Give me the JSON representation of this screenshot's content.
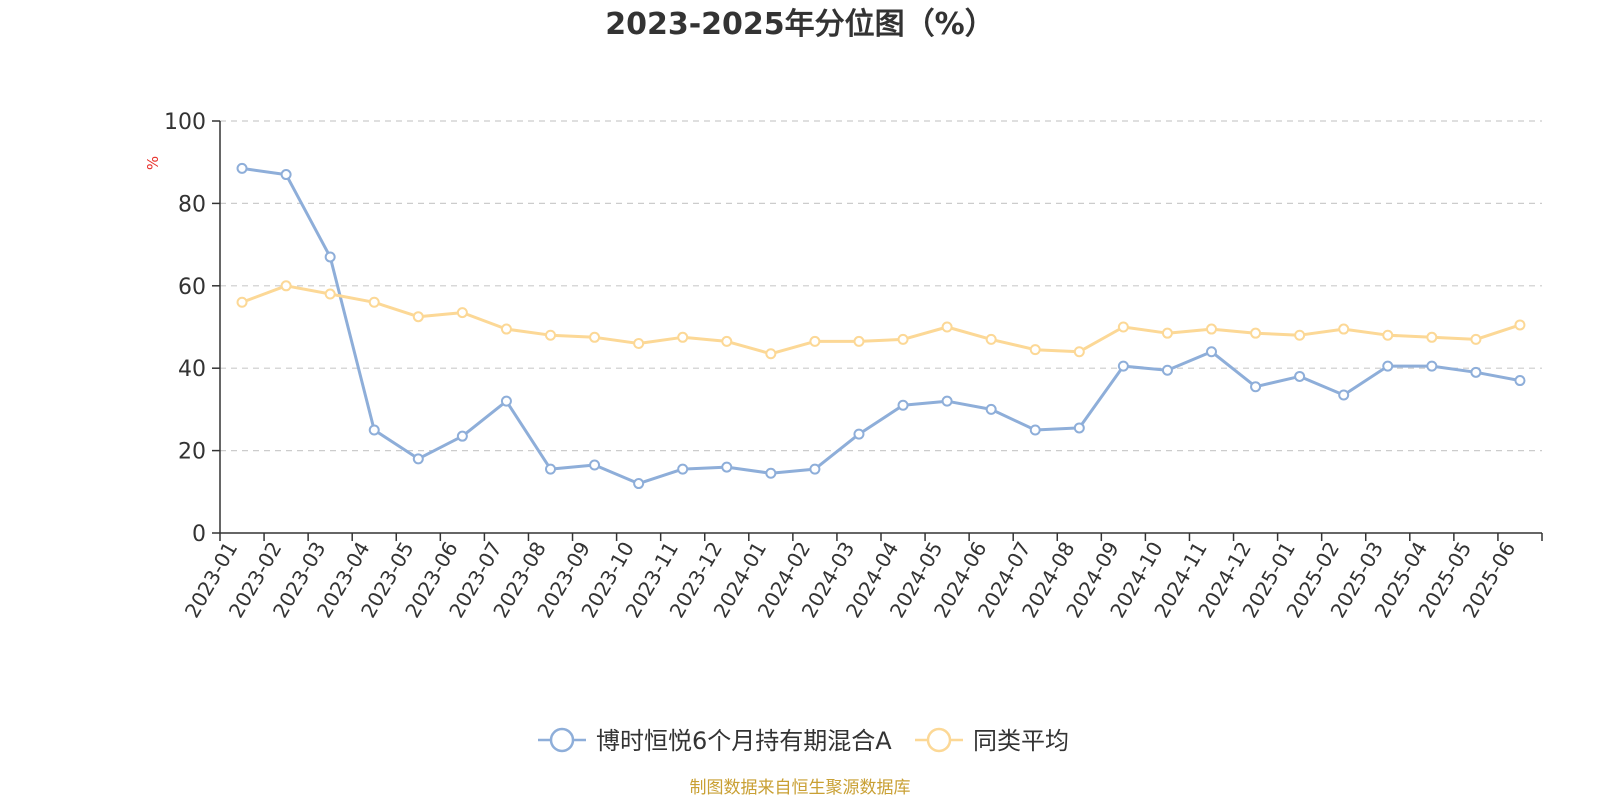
{
  "colors": {
    "series_a": "#8eaed9",
    "series_b": "#fcd896",
    "grid": "#cccccc",
    "axis": "#333333",
    "unit": "#e8312c",
    "source": "#c9a034"
  },
  "chart_data": {
    "type": "line",
    "title": "2023-2025年分位图（%）",
    "ylabel": "%",
    "ylim": [
      0,
      100
    ],
    "yticks": [
      0,
      20,
      40,
      60,
      80,
      100
    ],
    "grid": true,
    "legend_position": "bottom-center",
    "x": [
      "2023-01",
      "2023-02",
      "2023-03",
      "2023-04",
      "2023-05",
      "2023-06",
      "2023-07",
      "2023-08",
      "2023-09",
      "2023-10",
      "2023-11",
      "2023-12",
      "2024-01",
      "2024-02",
      "2024-03",
      "2024-04",
      "2024-05",
      "2024-06",
      "2024-07",
      "2024-08",
      "2024-09",
      "2024-10",
      "2024-11",
      "2024-12",
      "2025-01",
      "2025-02",
      "2025-03",
      "2025-04",
      "2025-05",
      "2025-06"
    ],
    "series": [
      {
        "name": "博时恒悦6个月持有期混合A",
        "values": [
          88.5,
          87,
          67,
          25,
          18,
          23.5,
          32,
          15.5,
          16.5,
          12,
          15.5,
          16,
          14.5,
          15.5,
          24,
          31,
          32,
          30,
          25,
          25.5,
          40.5,
          39.5,
          44,
          35.5,
          38,
          33.5,
          40.5,
          40.5,
          39,
          37
        ]
      },
      {
        "name": "同类平均",
        "values": [
          56,
          60,
          58,
          56,
          52.5,
          53.5,
          49.5,
          48,
          47.5,
          46,
          47.5,
          46.5,
          43.5,
          46.5,
          46.5,
          47,
          50,
          47,
          44.5,
          44,
          50,
          48.5,
          49.5,
          48.5,
          48,
          49.5,
          48,
          47.5,
          47,
          50.5
        ]
      }
    ]
  },
  "footer": {
    "source_text": "制图数据来自恒生聚源数据库"
  }
}
